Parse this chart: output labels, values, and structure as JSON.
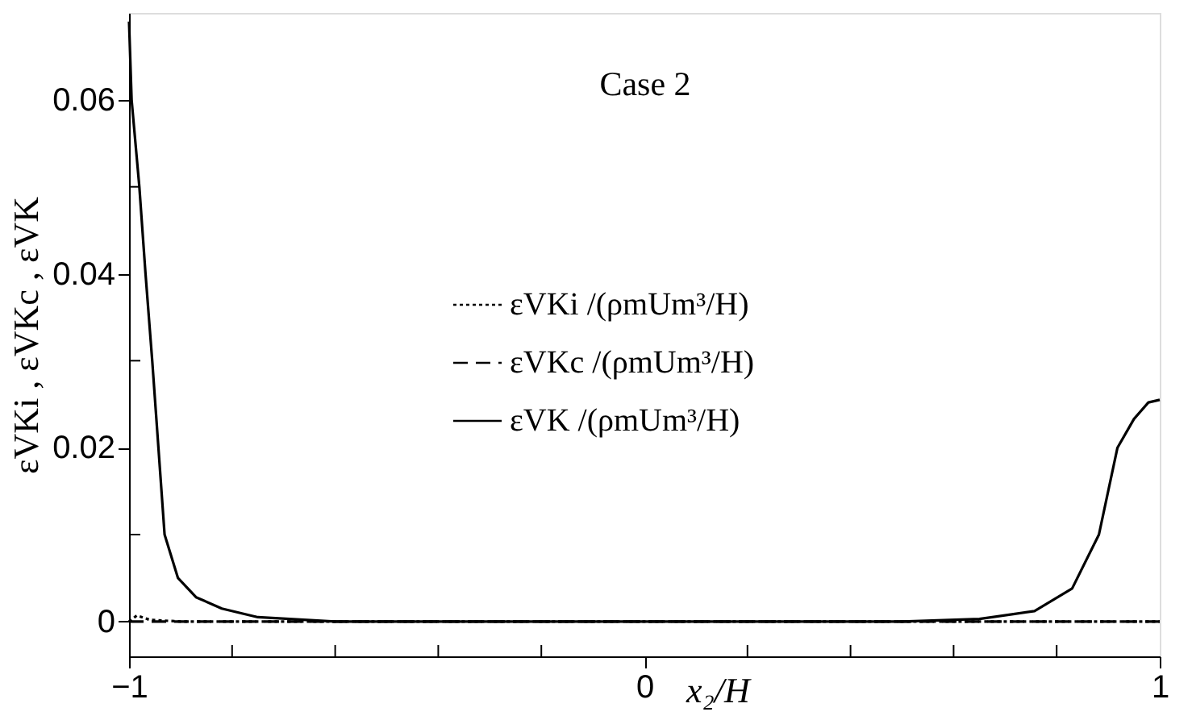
{
  "chart_data": {
    "type": "line",
    "xlabel": "x₂/H",
    "ylabel": "εVKi , εVKc , εVK",
    "annotations": [
      "Case 2"
    ],
    "xlim": [
      -1,
      1
    ],
    "xticks": [
      -1,
      {
        "value": -0.8,
        "label": null
      },
      {
        "value": -0.6,
        "label": null
      },
      {
        "value": -0.4,
        "label": null
      },
      {
        "value": -0.2,
        "label": null
      },
      0,
      {
        "value": 0.2,
        "label": null
      },
      {
        "value": 0.4,
        "label": null
      },
      {
        "value": 0.6,
        "label": null
      },
      {
        "value": 0.8,
        "label": null
      },
      1
    ],
    "ylim": [
      -0.004,
      0.07
    ],
    "yticks": [
      0,
      {
        "value": 0.01,
        "label": null
      },
      0.02,
      {
        "value": 0.03,
        "label": null
      },
      0.04,
      {
        "value": 0.05,
        "label": null
      },
      0.06
    ],
    "grid": false,
    "legend": "center",
    "marker": "none",
    "series": [
      {
        "name": "εVKi /(ρmUm³/H)",
        "color": "#000000",
        "line_style": "dotted",
        "x": [
          -1,
          -0.985,
          -0.96,
          -0.9,
          0,
          1
        ],
        "values": [
          0,
          0.0007,
          0.0002,
          0,
          0,
          0
        ]
      },
      {
        "name": "εVKc /(ρmUm³/H)",
        "color": "#000000",
        "line_style": "dashed",
        "x": [
          -1,
          1
        ],
        "values": [
          0,
          0
        ]
      },
      {
        "name": "εVK /(ρmUm³/H)",
        "color": "#000000",
        "line_style": "solid",
        "x": [
          -1,
          -0.995,
          -0.98,
          -0.968,
          -0.955,
          -0.943,
          -0.931,
          -0.905,
          -0.87,
          -0.82,
          -0.75,
          -0.6,
          0,
          0.5,
          0.65,
          0.757,
          0.83,
          0.882,
          0.918,
          0.95,
          0.978,
          1
        ],
        "values": [
          0.069,
          0.06,
          0.05,
          0.04,
          0.03,
          0.02,
          0.01,
          0.005,
          0.0028,
          0.0015,
          0.0005,
          0,
          0,
          0,
          0.0003,
          0.0012,
          0.0038,
          0.01,
          0.02,
          0.0233,
          0.0252,
          0.0255
        ]
      }
    ]
  }
}
